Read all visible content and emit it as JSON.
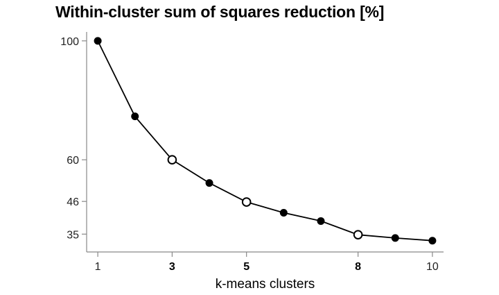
{
  "chart_data": {
    "type": "line",
    "title": "Within-cluster sum of squares reduction [%]",
    "xlabel": "k-means clusters",
    "ylabel": "",
    "x": [
      1,
      2,
      3,
      4,
      5,
      6,
      7,
      8,
      9,
      10
    ],
    "values": [
      100,
      74.6,
      60,
      52.2,
      45.8,
      42.2,
      39.4,
      34.8,
      33.7,
      32.8
    ],
    "highlighted_x": [
      3,
      5,
      8
    ],
    "x_ticks": [
      "1",
      "3",
      "5",
      "8",
      "10"
    ],
    "x_ticks_bold": [
      "3",
      "5",
      "8"
    ],
    "y_ticks": [
      "100",
      "60",
      "46",
      "35"
    ],
    "xlim": [
      0.7,
      10.3
    ],
    "ylim": [
      29,
      103
    ],
    "grid": false,
    "colors": {
      "line": "#000000",
      "marker_filled": "#000000",
      "marker_open_fill": "#ffffff"
    }
  }
}
